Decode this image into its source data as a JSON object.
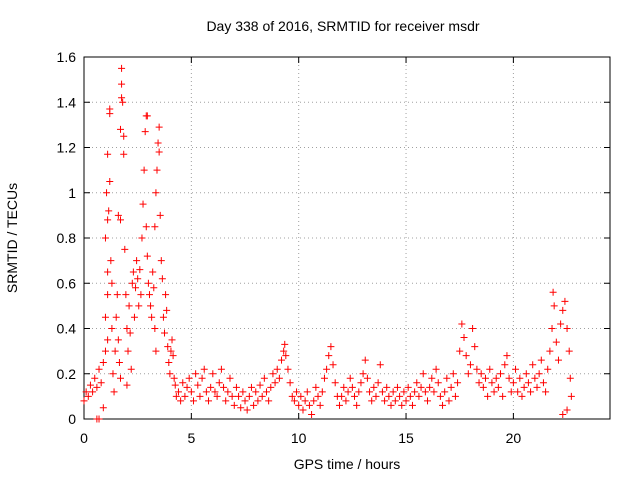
{
  "chart_data": {
    "type": "scatter",
    "title": "Day 338 of 2016, SRMTID for receiver msdr",
    "xlabel": "GPS time / hours",
    "ylabel": "SRMTID / TECUs",
    "xlim": [
      0,
      24.5
    ],
    "ylim": [
      0,
      1.6
    ],
    "x_ticks": [
      0,
      5,
      10,
      15,
      20
    ],
    "x_tick_labels": [
      "0",
      "5",
      "10",
      "15",
      "20"
    ],
    "y_ticks": [
      0,
      0.2,
      0.4,
      0.6,
      0.8,
      1.0,
      1.2,
      1.4,
      1.6
    ],
    "y_tick_labels": [
      "0",
      "0.2",
      "0.4",
      "0.6",
      "0.8",
      "1",
      "1.2",
      "1.4",
      "1.6"
    ],
    "grid": true,
    "marker": "+",
    "marker_color": "#ff0000",
    "series": [
      {
        "name": "SRMTID",
        "points": [
          [
            0.0,
            0.08
          ],
          [
            0.1,
            0.12
          ],
          [
            0.2,
            0.1
          ],
          [
            0.3,
            0.15
          ],
          [
            0.4,
            0.12
          ],
          [
            0.5,
            0.18
          ],
          [
            0.6,
            0.14
          ],
          [
            0.7,
            0.22
          ],
          [
            0.8,
            0.16
          ],
          [
            0.9,
            0.05
          ],
          [
            0.6,
            0.0
          ],
          [
            0.7,
            0.0
          ],
          [
            0.9,
            0.25
          ],
          [
            1.0,
            0.3
          ],
          [
            1.0,
            0.45
          ],
          [
            1.1,
            0.35
          ],
          [
            1.1,
            0.55
          ],
          [
            1.1,
            0.65
          ],
          [
            1.0,
            0.8
          ],
          [
            1.1,
            0.88
          ],
          [
            1.05,
            1.0
          ],
          [
            1.15,
            0.92
          ],
          [
            1.2,
            1.05
          ],
          [
            1.1,
            1.17
          ],
          [
            1.2,
            1.35
          ],
          [
            1.2,
            1.37
          ],
          [
            1.25,
            0.7
          ],
          [
            1.3,
            0.6
          ],
          [
            1.3,
            0.4
          ],
          [
            1.35,
            0.2
          ],
          [
            1.4,
            0.12
          ],
          [
            1.45,
            0.3
          ],
          [
            1.5,
            0.45
          ],
          [
            1.55,
            0.55
          ],
          [
            1.6,
            0.35
          ],
          [
            1.65,
            0.25
          ],
          [
            1.7,
            0.18
          ],
          [
            1.6,
            0.9
          ],
          [
            1.7,
            0.88
          ],
          [
            1.7,
            1.28
          ],
          [
            1.75,
            1.42
          ],
          [
            1.75,
            1.48
          ],
          [
            1.75,
            1.55
          ],
          [
            1.8,
            1.4
          ],
          [
            1.85,
            1.17
          ],
          [
            1.85,
            1.25
          ],
          [
            1.9,
            0.75
          ],
          [
            1.95,
            0.55
          ],
          [
            2.0,
            0.4
          ],
          [
            2.0,
            0.15
          ],
          [
            2.05,
            0.3
          ],
          [
            2.1,
            0.5
          ],
          [
            2.15,
            0.38
          ],
          [
            2.2,
            0.22
          ],
          [
            2.25,
            0.6
          ],
          [
            2.3,
            0.65
          ],
          [
            2.35,
            0.45
          ],
          [
            2.4,
            0.58
          ],
          [
            2.45,
            0.7
          ],
          [
            2.5,
            0.62
          ],
          [
            2.55,
            0.5
          ],
          [
            2.6,
            0.66
          ],
          [
            2.65,
            0.55
          ],
          [
            2.7,
            0.8
          ],
          [
            2.75,
            0.95
          ],
          [
            2.8,
            1.1
          ],
          [
            2.85,
            1.27
          ],
          [
            2.9,
            1.34
          ],
          [
            2.95,
            1.34
          ],
          [
            2.9,
            0.85
          ],
          [
            2.95,
            0.72
          ],
          [
            3.0,
            0.6
          ],
          [
            3.05,
            0.55
          ],
          [
            3.1,
            0.5
          ],
          [
            3.15,
            0.45
          ],
          [
            3.2,
            0.65
          ],
          [
            3.25,
            0.58
          ],
          [
            3.3,
            0.4
          ],
          [
            3.35,
            0.3
          ],
          [
            3.3,
            0.85
          ],
          [
            3.35,
            1.0
          ],
          [
            3.4,
            1.1
          ],
          [
            3.45,
            1.22
          ],
          [
            3.5,
            1.29
          ],
          [
            3.5,
            1.18
          ],
          [
            3.55,
            0.9
          ],
          [
            3.6,
            0.7
          ],
          [
            3.65,
            0.62
          ],
          [
            3.7,
            0.45
          ],
          [
            3.75,
            0.38
          ],
          [
            3.8,
            0.55
          ],
          [
            3.85,
            0.48
          ],
          [
            3.9,
            0.32
          ],
          [
            3.95,
            0.25
          ],
          [
            4.0,
            0.2
          ],
          [
            4.05,
            0.3
          ],
          [
            4.1,
            0.35
          ],
          [
            4.15,
            0.28
          ],
          [
            4.2,
            0.18
          ],
          [
            4.25,
            0.15
          ],
          [
            4.3,
            0.1
          ],
          [
            4.4,
            0.12
          ],
          [
            4.5,
            0.08
          ],
          [
            4.6,
            0.16
          ],
          [
            4.7,
            0.1
          ],
          [
            4.8,
            0.14
          ],
          [
            4.9,
            0.18
          ],
          [
            5.0,
            0.12
          ],
          [
            5.1,
            0.08
          ],
          [
            5.2,
            0.2
          ],
          [
            5.3,
            0.15
          ],
          [
            5.4,
            0.1
          ],
          [
            5.5,
            0.18
          ],
          [
            5.6,
            0.22
          ],
          [
            5.7,
            0.12
          ],
          [
            5.8,
            0.08
          ],
          [
            5.9,
            0.14
          ],
          [
            6.0,
            0.2
          ],
          [
            6.1,
            0.12
          ],
          [
            6.2,
            0.1
          ],
          [
            6.3,
            0.16
          ],
          [
            6.4,
            0.22
          ],
          [
            6.5,
            0.14
          ],
          [
            6.6,
            0.08
          ],
          [
            6.7,
            0.12
          ],
          [
            6.8,
            0.18
          ],
          [
            6.9,
            0.1
          ],
          [
            7.0,
            0.06
          ],
          [
            7.1,
            0.14
          ],
          [
            7.2,
            0.1
          ],
          [
            7.3,
            0.05
          ],
          [
            7.4,
            0.12
          ],
          [
            7.5,
            0.08
          ],
          [
            7.6,
            0.04
          ],
          [
            7.7,
            0.1
          ],
          [
            7.8,
            0.14
          ],
          [
            7.9,
            0.06
          ],
          [
            8.0,
            0.12
          ],
          [
            8.1,
            0.08
          ],
          [
            8.2,
            0.15
          ],
          [
            8.3,
            0.1
          ],
          [
            8.4,
            0.18
          ],
          [
            8.5,
            0.12
          ],
          [
            8.6,
            0.08
          ],
          [
            8.7,
            0.14
          ],
          [
            8.8,
            0.2
          ],
          [
            8.9,
            0.16
          ],
          [
            9.0,
            0.22
          ],
          [
            9.1,
            0.18
          ],
          [
            9.2,
            0.26
          ],
          [
            9.3,
            0.3
          ],
          [
            9.35,
            0.33
          ],
          [
            9.4,
            0.28
          ],
          [
            9.5,
            0.22
          ],
          [
            9.6,
            0.16
          ],
          [
            9.7,
            0.1
          ],
          [
            9.8,
            0.08
          ],
          [
            9.9,
            0.12
          ],
          [
            10.0,
            0.06
          ],
          [
            10.1,
            0.1
          ],
          [
            10.2,
            0.04
          ],
          [
            10.3,
            0.08
          ],
          [
            10.4,
            0.12
          ],
          [
            10.5,
            0.06
          ],
          [
            10.6,
            0.02
          ],
          [
            10.7,
            0.08
          ],
          [
            10.8,
            0.14
          ],
          [
            10.9,
            0.1
          ],
          [
            11.0,
            0.06
          ],
          [
            11.1,
            0.12
          ],
          [
            11.2,
            0.18
          ],
          [
            11.3,
            0.22
          ],
          [
            11.4,
            0.28
          ],
          [
            11.5,
            0.32
          ],
          [
            11.6,
            0.24
          ],
          [
            11.7,
            0.16
          ],
          [
            11.8,
            0.1
          ],
          [
            11.9,
            0.06
          ],
          [
            12.0,
            0.1
          ],
          [
            12.1,
            0.14
          ],
          [
            12.2,
            0.08
          ],
          [
            12.3,
            0.12
          ],
          [
            12.4,
            0.18
          ],
          [
            12.5,
            0.14
          ],
          [
            12.6,
            0.1
          ],
          [
            12.7,
            0.06
          ],
          [
            12.8,
            0.12
          ],
          [
            12.9,
            0.16
          ],
          [
            13.0,
            0.2
          ],
          [
            13.1,
            0.26
          ],
          [
            13.2,
            0.18
          ],
          [
            13.3,
            0.12
          ],
          [
            13.4,
            0.08
          ],
          [
            13.5,
            0.14
          ],
          [
            13.6,
            0.1
          ],
          [
            13.7,
            0.16
          ],
          [
            13.8,
            0.24
          ],
          [
            13.9,
            0.12
          ],
          [
            14.0,
            0.08
          ],
          [
            14.1,
            0.14
          ],
          [
            14.2,
            0.1
          ],
          [
            14.3,
            0.06
          ],
          [
            14.4,
            0.12
          ],
          [
            14.5,
            0.08
          ],
          [
            14.6,
            0.14
          ],
          [
            14.7,
            0.1
          ],
          [
            14.8,
            0.06
          ],
          [
            14.9,
            0.12
          ],
          [
            15.0,
            0.08
          ],
          [
            15.1,
            0.14
          ],
          [
            15.2,
            0.1
          ],
          [
            15.3,
            0.06
          ],
          [
            15.4,
            0.12
          ],
          [
            15.5,
            0.16
          ],
          [
            15.6,
            0.1
          ],
          [
            15.7,
            0.14
          ],
          [
            15.8,
            0.2
          ],
          [
            15.9,
            0.12
          ],
          [
            16.0,
            0.08
          ],
          [
            16.1,
            0.14
          ],
          [
            16.2,
            0.18
          ],
          [
            16.3,
            0.12
          ],
          [
            16.4,
            0.22
          ],
          [
            16.5,
            0.16
          ],
          [
            16.6,
            0.1
          ],
          [
            16.7,
            0.06
          ],
          [
            16.8,
            0.12
          ],
          [
            16.9,
            0.18
          ],
          [
            17.0,
            0.08
          ],
          [
            17.1,
            0.14
          ],
          [
            17.2,
            0.2
          ],
          [
            17.3,
            0.1
          ],
          [
            17.4,
            0.16
          ],
          [
            17.5,
            0.3
          ],
          [
            17.6,
            0.42
          ],
          [
            17.7,
            0.36
          ],
          [
            17.8,
            0.28
          ],
          [
            17.9,
            0.2
          ],
          [
            18.0,
            0.24
          ],
          [
            18.1,
            0.4
          ],
          [
            18.2,
            0.32
          ],
          [
            18.3,
            0.22
          ],
          [
            18.4,
            0.16
          ],
          [
            18.5,
            0.2
          ],
          [
            18.6,
            0.14
          ],
          [
            18.7,
            0.18
          ],
          [
            18.8,
            0.1
          ],
          [
            18.9,
            0.22
          ],
          [
            19.0,
            0.16
          ],
          [
            19.1,
            0.12
          ],
          [
            19.2,
            0.18
          ],
          [
            19.3,
            0.14
          ],
          [
            19.4,
            0.2
          ],
          [
            19.5,
            0.1
          ],
          [
            19.6,
            0.24
          ],
          [
            19.7,
            0.28
          ],
          [
            19.8,
            0.18
          ],
          [
            19.9,
            0.12
          ],
          [
            20.0,
            0.16
          ],
          [
            20.1,
            0.22
          ],
          [
            20.2,
            0.12
          ],
          [
            20.3,
            0.18
          ],
          [
            20.4,
            0.1
          ],
          [
            20.5,
            0.14
          ],
          [
            20.6,
            0.2
          ],
          [
            20.7,
            0.16
          ],
          [
            20.8,
            0.12
          ],
          [
            20.9,
            0.24
          ],
          [
            21.0,
            0.18
          ],
          [
            21.1,
            0.14
          ],
          [
            21.2,
            0.2
          ],
          [
            21.3,
            0.26
          ],
          [
            21.4,
            0.16
          ],
          [
            21.5,
            0.12
          ],
          [
            21.6,
            0.22
          ],
          [
            21.7,
            0.3
          ],
          [
            21.8,
            0.4
          ],
          [
            21.85,
            0.56
          ],
          [
            21.9,
            0.5
          ],
          [
            22.0,
            0.34
          ],
          [
            22.1,
            0.26
          ],
          [
            22.2,
            0.42
          ],
          [
            22.3,
            0.48
          ],
          [
            22.4,
            0.52
          ],
          [
            22.5,
            0.4
          ],
          [
            22.6,
            0.3
          ],
          [
            22.65,
            0.18
          ],
          [
            22.7,
            0.1
          ],
          [
            22.5,
            0.04
          ],
          [
            22.3,
            0.02
          ]
        ]
      }
    ]
  }
}
